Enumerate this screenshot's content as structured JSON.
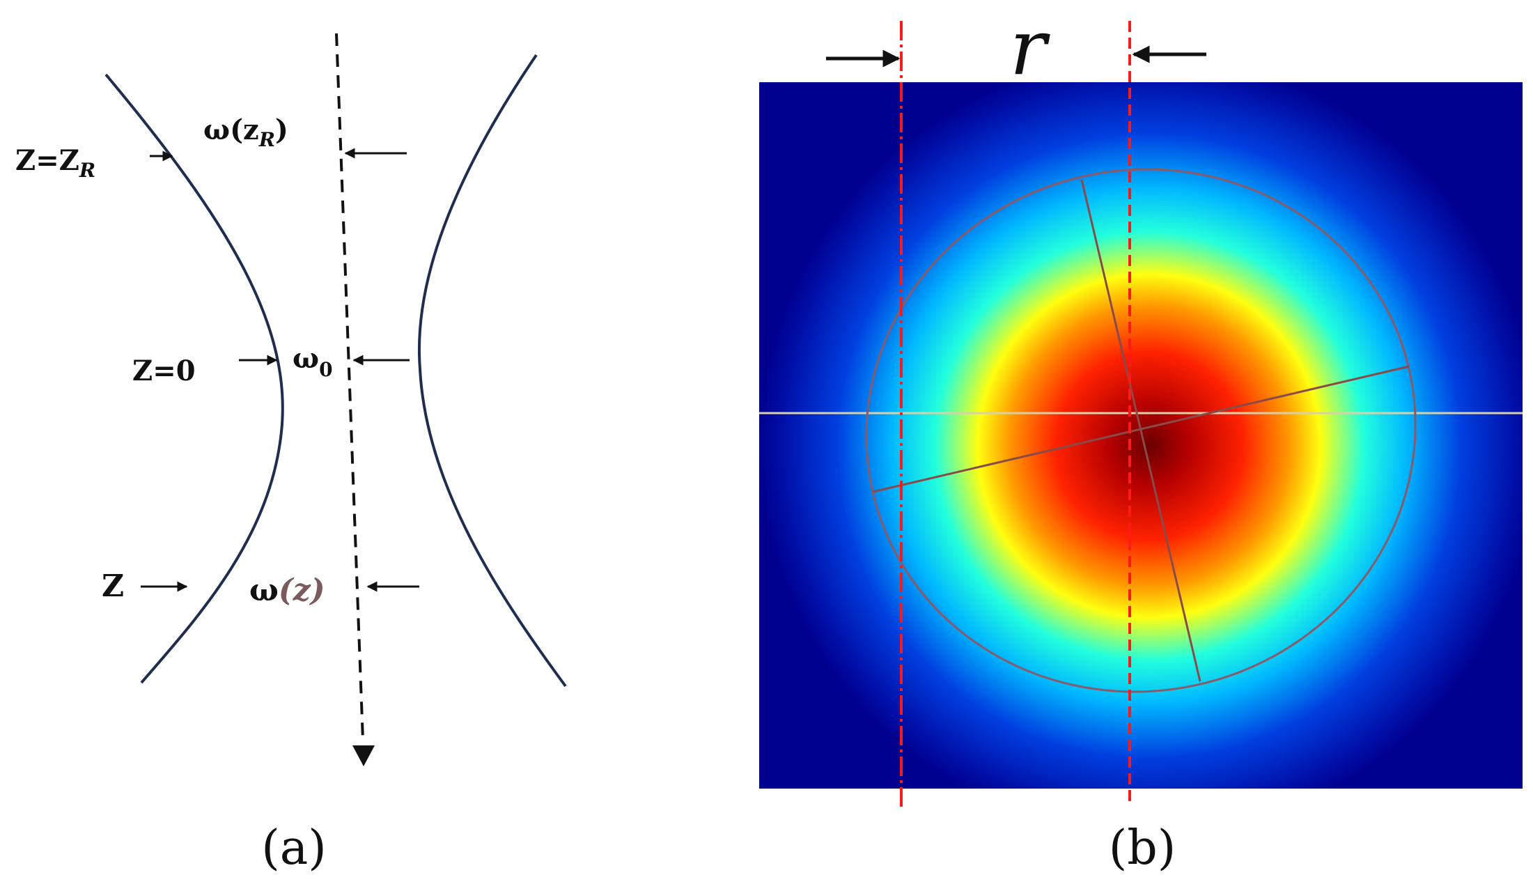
{
  "panel_a": {
    "labels": {
      "z_equals_zr": "Z=Z",
      "z_equals_zr_sub": "R",
      "omega_zr": "ω(z",
      "omega_zr_sub": "R",
      "omega_zr_close": ")",
      "z_equals_0": "Z=0",
      "omega_0": "ω",
      "omega_0_sub": "0",
      "z": "Z",
      "omega_z_sym": "ω",
      "omega_z_paren": "(z)"
    },
    "caption": "(a)",
    "colors": {
      "beam_edge": "#1f2d4e",
      "axis": "#111111"
    }
  },
  "panel_b": {
    "label_r": "r",
    "caption": "(b)",
    "colors": {
      "reference_lines": "#ff1a1a",
      "fit_ellipse": "#8a5a6a",
      "horizontal_profile": "#d8d0a8",
      "background": "#00008f"
    }
  }
}
